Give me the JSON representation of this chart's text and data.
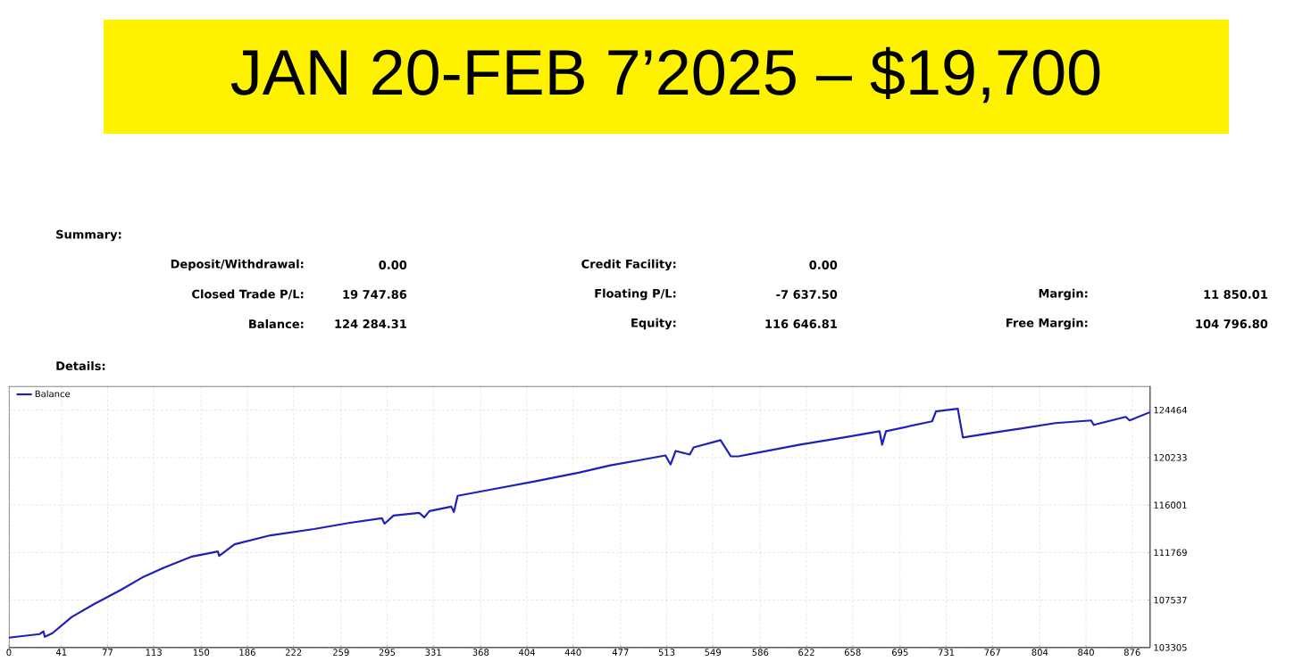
{
  "chart_data": {
    "type": "line",
    "title": "JAN 20-FEB 7’2025 – $19,700",
    "annotations": [
      "Summary:",
      "Deposit/Withdrawal:",
      "0.00",
      "Credit Facility:",
      "0.00",
      "Closed Trade P/L:",
      "19 747.86",
      "Floating P/L:",
      "-7 637.50",
      "Margin:",
      "11 850.01",
      "Balance:",
      "124 284.31",
      "Equity:",
      "116 646.81",
      "Free Margin:",
      "104 796.80",
      "Details:"
    ],
    "x": [
      0,
      24,
      27,
      28,
      34,
      49,
      66,
      87,
      104,
      121,
      142,
      163,
      164,
      176,
      204,
      238,
      266,
      291,
      293,
      300,
      320,
      324,
      328,
      345,
      347,
      350,
      376,
      410,
      445,
      469,
      493,
      512,
      516,
      520,
      531,
      534,
      555,
      563,
      569,
      617,
      651,
      679,
      681,
      684,
      720,
      723,
      740,
      744,
      775,
      789,
      816,
      844,
      846,
      871,
      874,
      890
    ],
    "series": [
      {
        "name": "Balance",
        "color": "#2020b8",
        "values": [
          104185,
          104505,
          104745,
          104265,
          104585,
          106025,
          107145,
          108425,
          109545,
          110425,
          111385,
          111865,
          111465,
          112505,
          113305,
          113865,
          114425,
          114825,
          114345,
          115065,
          115305,
          114905,
          115465,
          115865,
          115385,
          116825,
          117385,
          118105,
          118905,
          119545,
          120025,
          120425,
          119625,
          120825,
          120505,
          121145,
          121785,
          120345,
          120345,
          121385,
          122025,
          122585,
          121385,
          122585,
          123465,
          124345,
          124585,
          122025,
          122585,
          122825,
          123305,
          123545,
          123145,
          123865,
          123545,
          124280
        ]
      }
    ],
    "xlim": [
      0,
      890
    ],
    "ylim": [
      103305,
      126600
    ],
    "xticks": [
      0,
      41,
      77,
      113,
      150,
      186,
      222,
      259,
      295,
      331,
      368,
      404,
      440,
      477,
      513,
      549,
      586,
      622,
      658,
      695,
      731,
      767,
      804,
      840,
      876
    ],
    "yticks": [
      103305,
      107537,
      111769,
      116001,
      120233,
      124464
    ],
    "grid": true,
    "legend": "top left",
    "marker": "none",
    "line_style": "solid"
  }
}
